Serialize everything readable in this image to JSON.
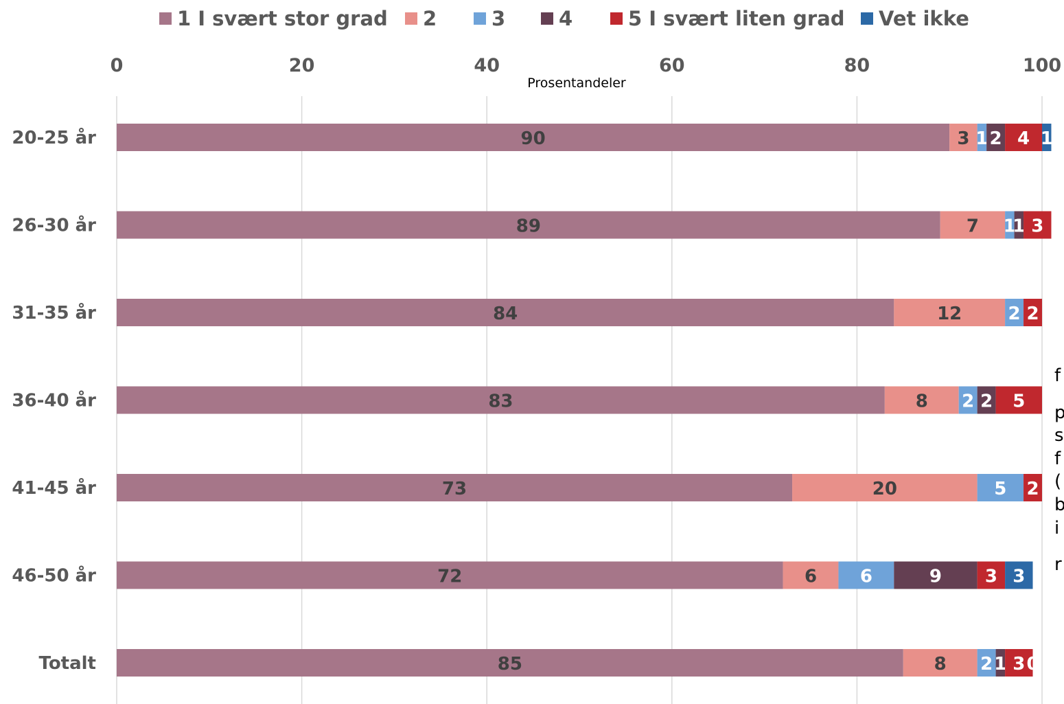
{
  "chart_data": {
    "type": "bar",
    "orientation": "horizontal",
    "stacked": true,
    "xlabel": "Prosentandeler",
    "xlim": [
      0,
      100
    ],
    "xticks": [
      0,
      20,
      40,
      60,
      80,
      100
    ],
    "grid": true,
    "legend_position": "top",
    "categories": [
      "20-25 år",
      "26-30 år",
      "31-35 år",
      "36-40 år",
      "41-45 år",
      "46-50 år",
      "Totalt"
    ],
    "series": [
      {
        "name": "1 I svært stor grad",
        "color": "#A67689",
        "values": [
          90,
          89,
          84,
          83,
          73,
          72,
          85
        ]
      },
      {
        "name": "2",
        "color": "#E8908A",
        "values": [
          3,
          7,
          12,
          8,
          20,
          6,
          8
        ]
      },
      {
        "name": "3",
        "color": "#6FA3D9",
        "values": [
          1,
          1,
          2,
          2,
          5,
          6,
          2
        ]
      },
      {
        "name": "4",
        "color": "#643F52",
        "values": [
          2,
          1,
          0,
          2,
          0,
          9,
          1
        ]
      },
      {
        "name": "5 I svært liten grad",
        "color": "#C0282E",
        "values": [
          4,
          3,
          2,
          5,
          2,
          3,
          3
        ]
      },
      {
        "name": "Vet ikke",
        "color": "#2C69A6",
        "values": [
          1,
          0,
          0,
          0,
          0,
          3,
          0
        ]
      }
    ],
    "data_labels": [
      [
        "90",
        "3",
        "1",
        "2",
        "4",
        "1"
      ],
      [
        "89",
        "7",
        "1",
        "1",
        "3",
        ""
      ],
      [
        "84",
        "12",
        "2",
        "",
        "2",
        ""
      ],
      [
        "83",
        "8",
        "2",
        "2",
        "5",
        ""
      ],
      [
        "73",
        "20",
        "5",
        "",
        "2",
        ""
      ],
      [
        "72",
        "6",
        "6",
        "9",
        "3",
        "3"
      ],
      [
        "85",
        "8",
        "2",
        "1",
        "3",
        "0"
      ]
    ]
  },
  "side_note_fragments": [
    "f",
    "p",
    "s",
    "f",
    "(",
    "b",
    "i",
    "r"
  ]
}
